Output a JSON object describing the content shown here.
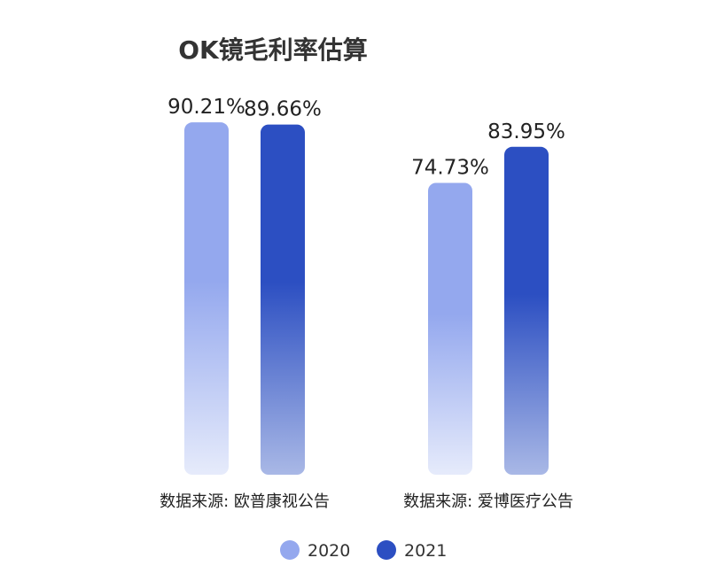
{
  "chart_data": {
    "type": "bar",
    "title": "OK镜毛利率估算",
    "xlabel": "",
    "ylabel": "",
    "ylim": [
      0,
      100
    ],
    "grid": false,
    "legend_position": "bottom-center",
    "categories": [
      "数据来源: 欧普康视公告",
      "数据来源: 爱博医疗公告"
    ],
    "series": [
      {
        "name": "2020",
        "values": [
          90.21,
          74.73
        ],
        "labels": [
          "90.21%",
          "74.73%"
        ],
        "color": "#94a8ee",
        "color_fade": "#e6ebfb"
      },
      {
        "name": "2021",
        "values": [
          89.66,
          83.95
        ],
        "labels": [
          "89.66%",
          "83.95%"
        ],
        "color": "#2c4fc2",
        "color_fade": "#a9b8e6"
      }
    ]
  }
}
